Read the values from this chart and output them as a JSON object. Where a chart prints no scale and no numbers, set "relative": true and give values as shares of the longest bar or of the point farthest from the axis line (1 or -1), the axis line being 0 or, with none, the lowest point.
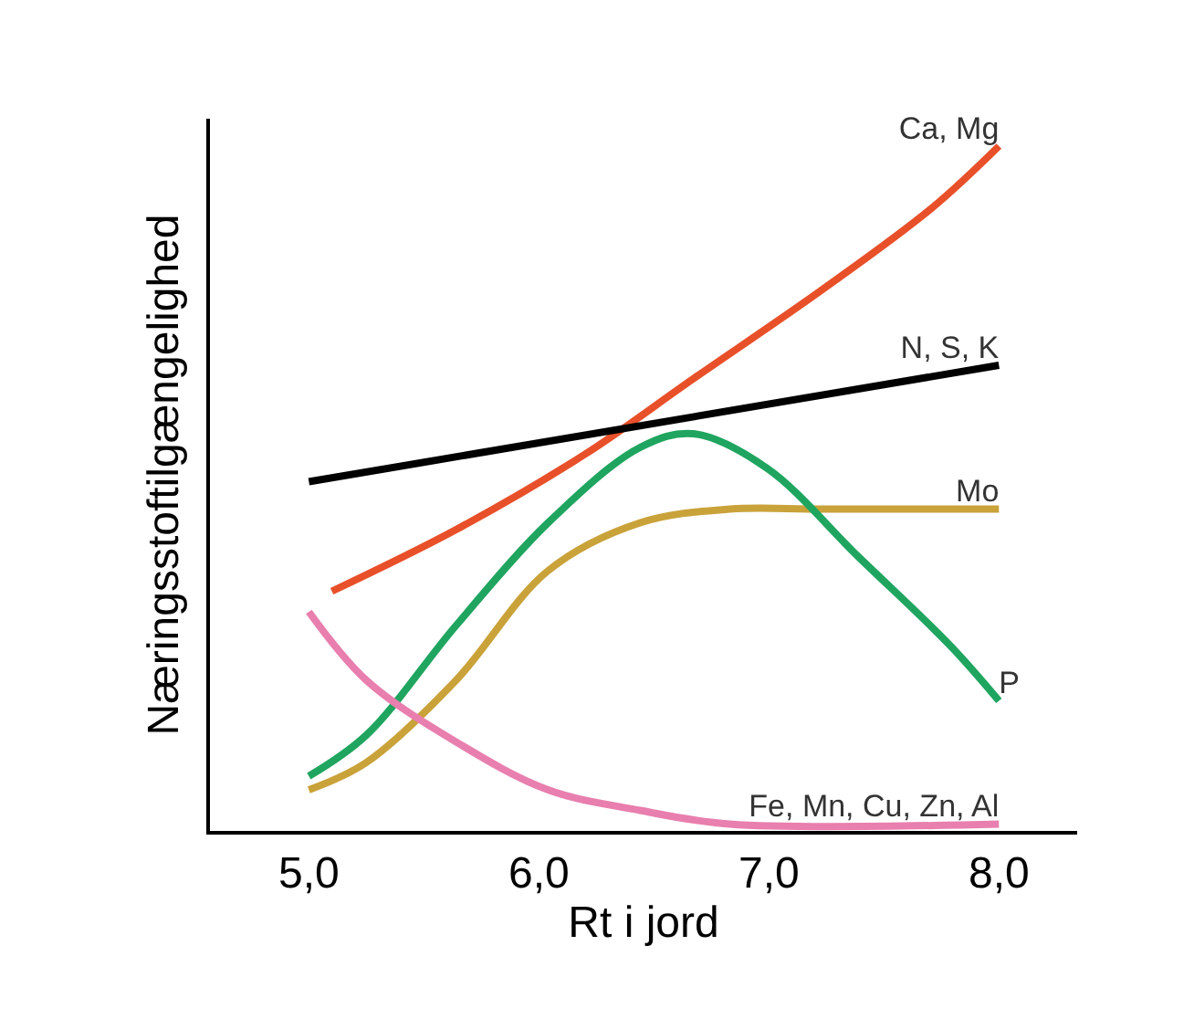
{
  "chart_data": {
    "type": "line",
    "relative": true,
    "xlabel": "Rt i jord",
    "ylabel": "Næringsstoftilgængelighed",
    "xlim": [
      4.57,
      8.34
    ],
    "xticks": [
      {
        "value": 5,
        "label": "5,0"
      },
      {
        "value": 6,
        "label": "6,0"
      },
      {
        "value": 7,
        "label": "7,0"
      },
      {
        "value": 8,
        "label": "8,0"
      }
    ],
    "legend": false,
    "marker": "none",
    "line_style": "solid",
    "tick_labels": "x",
    "series": [
      {
        "name": "Ca, Mg",
        "color": "#e8502a",
        "x": [
          5.1,
          5.64,
          6.2,
          6.67,
          7.23,
          7.71,
          8.0
        ],
        "values": [
          0.35,
          0.44,
          0.55,
          0.66,
          0.79,
          0.91,
          1.0
        ]
      },
      {
        "name": "N, S, K",
        "color": "#000000",
        "x": [
          5.0,
          8.0
        ],
        "values": [
          0.51,
          0.68
        ]
      },
      {
        "name": "Mo",
        "color": "#c9a23a",
        "x": [
          5.0,
          5.25,
          5.64,
          6.04,
          6.44,
          6.83,
          7.23,
          8.0
        ],
        "values": [
          0.06,
          0.1,
          0.22,
          0.38,
          0.45,
          0.47,
          0.47,
          0.47
        ]
      },
      {
        "name": "P",
        "color": "#1fa55f",
        "x": [
          5.0,
          5.25,
          5.64,
          6.04,
          6.44,
          6.67,
          6.99,
          7.39,
          7.79,
          8.0
        ],
        "values": [
          0.08,
          0.14,
          0.3,
          0.45,
          0.56,
          0.58,
          0.53,
          0.4,
          0.27,
          0.19
        ]
      },
      {
        "name": "Fe, Mn, Cu, Zn, Al",
        "color": "#e87fae",
        "x": [
          5.0,
          5.25,
          5.64,
          6.04,
          6.44,
          6.83,
          8.0
        ],
        "values": [
          0.32,
          0.22,
          0.13,
          0.06,
          0.03,
          0.01,
          0.01
        ]
      }
    ]
  }
}
